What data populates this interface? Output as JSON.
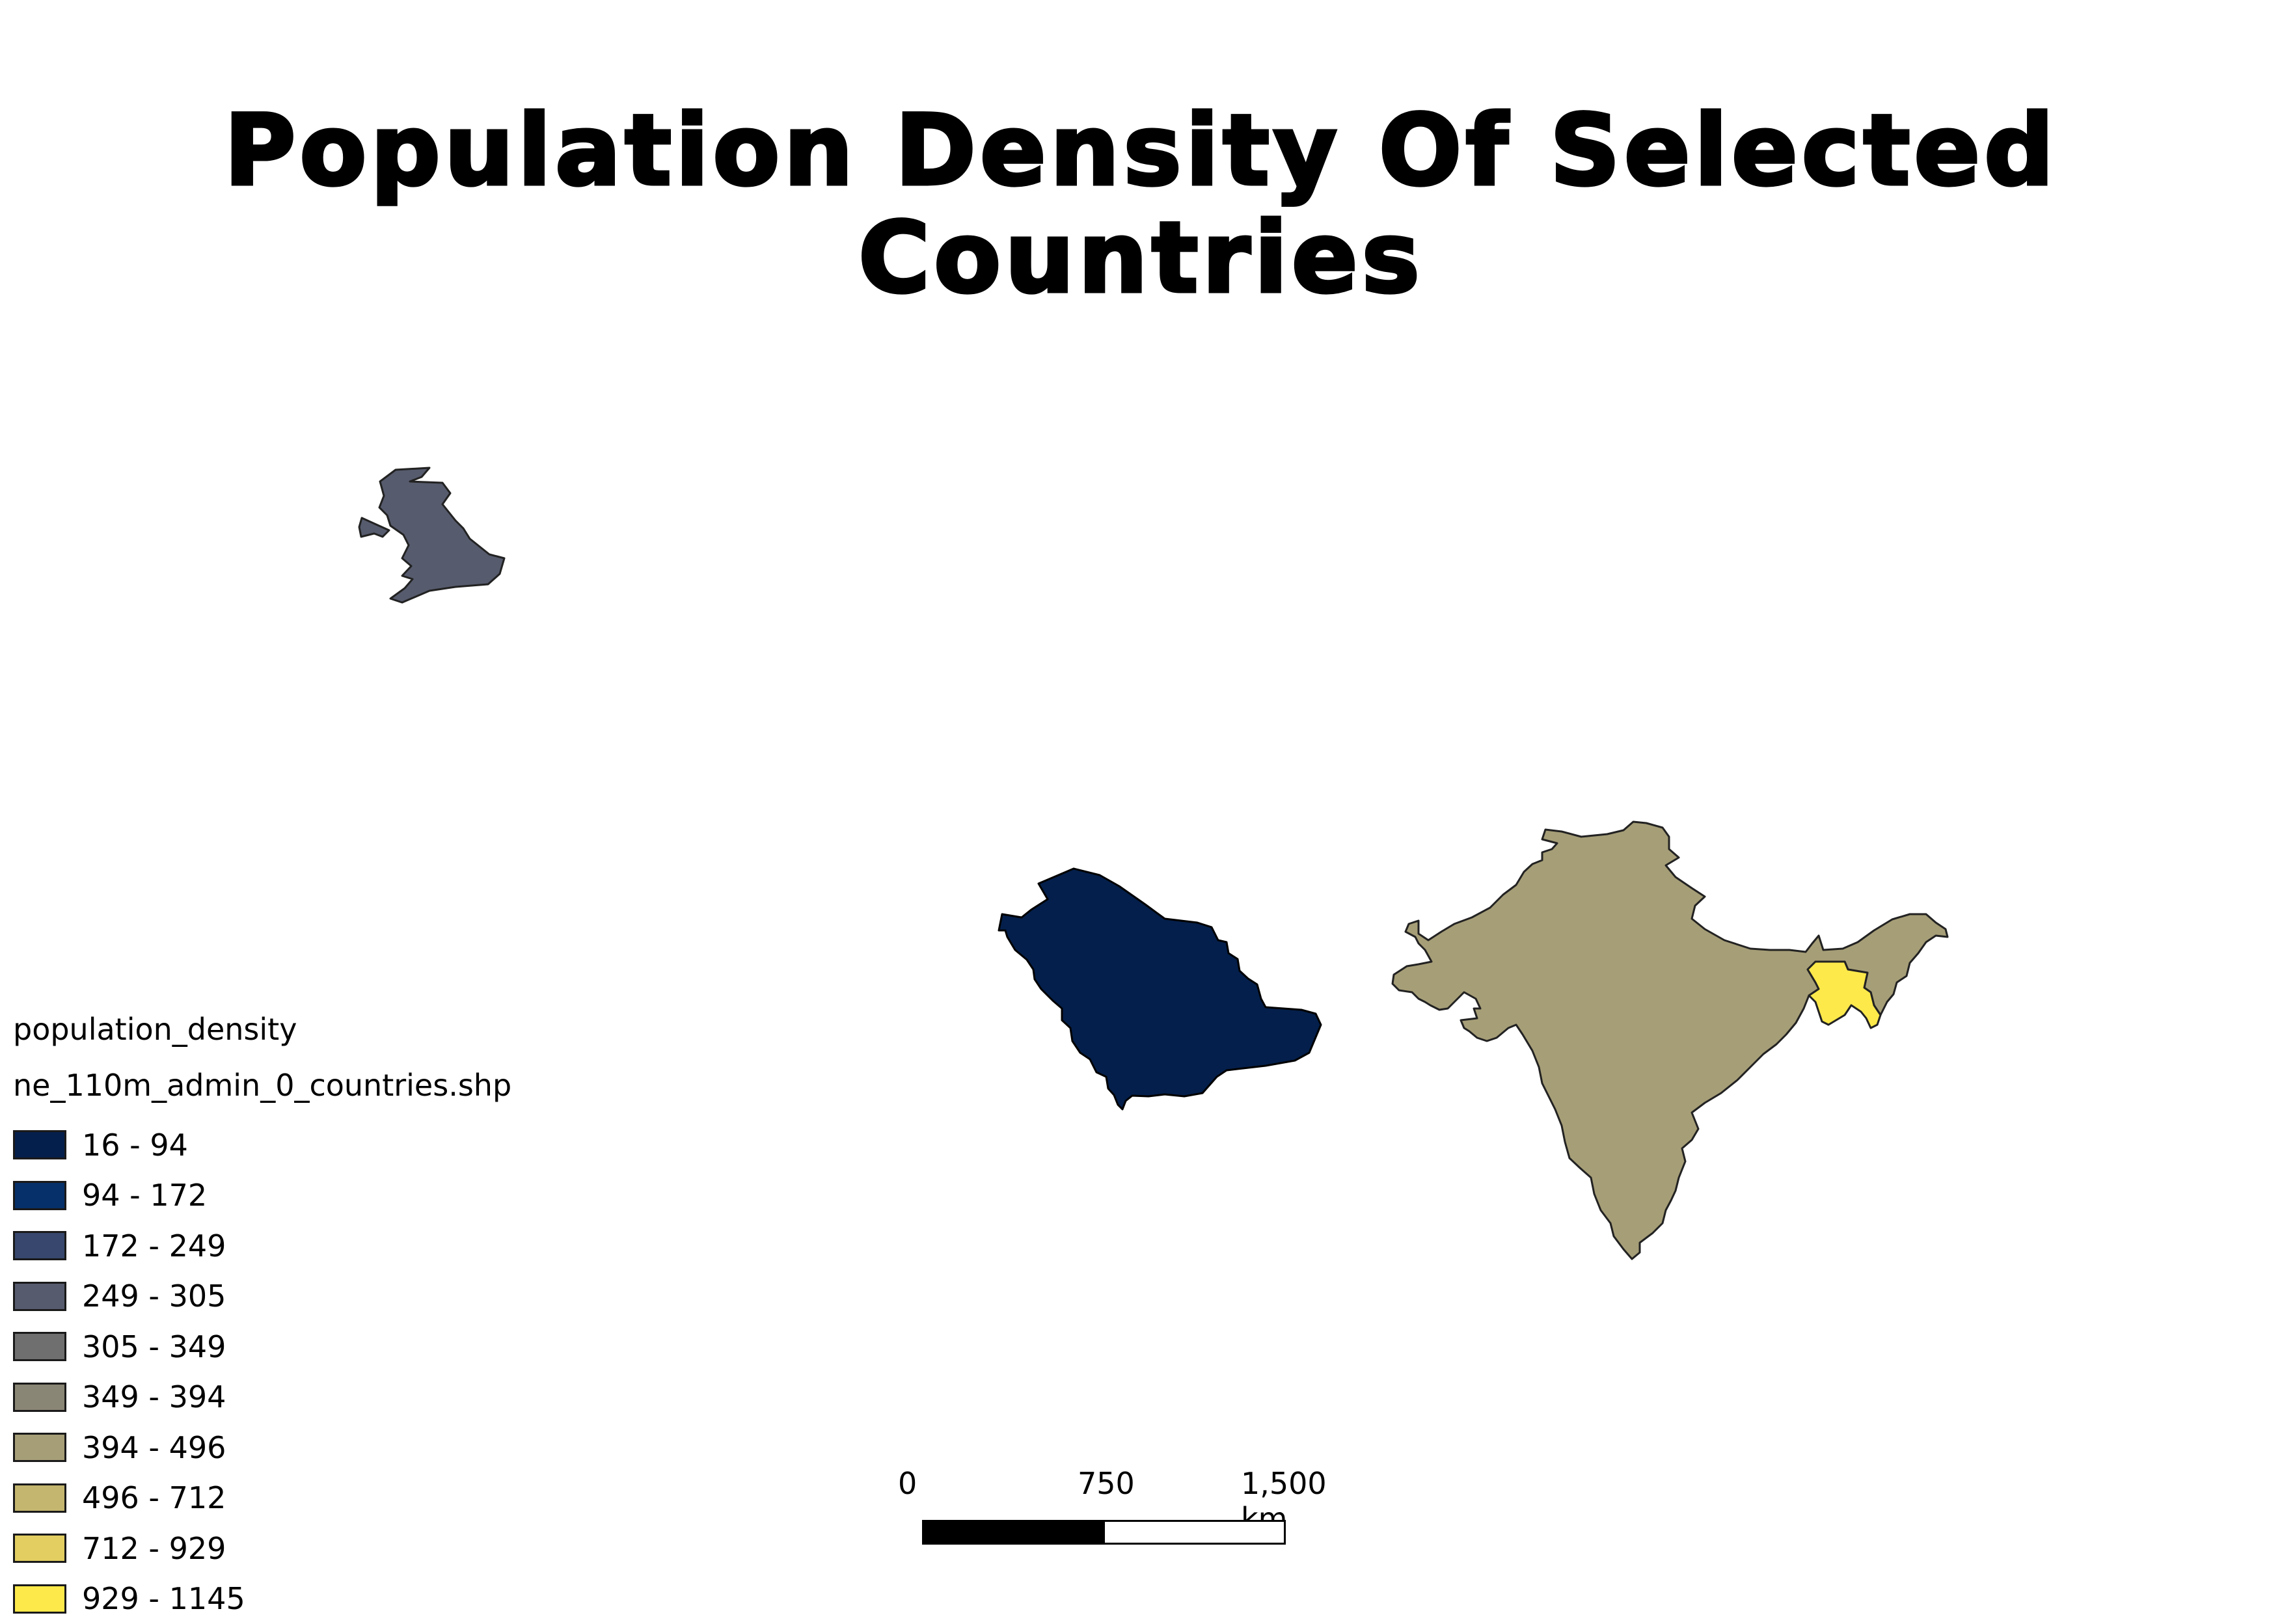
{
  "title": "Population Density Of Selected Countries",
  "legend": {
    "layer_title": "population_density",
    "layer_name": "ne_110m_admin_0_countries.shp",
    "classes": [
      {
        "label": "16 - 94",
        "color": "#041f4b"
      },
      {
        "label": "94 - 172",
        "color": "#053069"
      },
      {
        "label": "172 - 249",
        "color": "#37476d"
      },
      {
        "label": "249 - 305",
        "color": "#565b6d"
      },
      {
        "label": "305 - 349",
        "color": "#6f6f6f"
      },
      {
        "label": "349 - 394",
        "color": "#8a8675"
      },
      {
        "label": "394 - 496",
        "color": "#a69e77"
      },
      {
        "label": "496 - 712",
        "color": "#c4b66e"
      },
      {
        "label": "712 - 929",
        "color": "#e2ce61"
      },
      {
        "label": "929 - 1145",
        "color": "#fde94a"
      }
    ]
  },
  "countries": [
    {
      "id": "united-kingdom",
      "color": "#565b6d"
    },
    {
      "id": "saudi-arabia",
      "color": "#041f4b"
    },
    {
      "id": "india",
      "color": "#a69e77"
    },
    {
      "id": "bangladesh",
      "color": "#fde94a"
    }
  ],
  "scalebar": {
    "labels": [
      "0",
      "750",
      "1,500 km"
    ],
    "fills": [
      "#000000",
      "#ffffff"
    ]
  }
}
